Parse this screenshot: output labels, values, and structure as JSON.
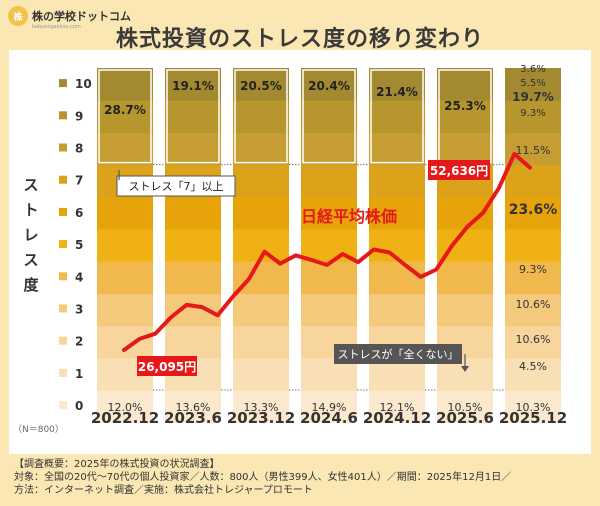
{
  "brand": {
    "logo_text": "株の学校",
    "name": "株の学校ドットコム",
    "sub": "kabunogakkou.com"
  },
  "title": "株式投資のストレス度の移り変わり",
  "footer": {
    "line1": "【調査概要：2025年の株式投資の状況調査】",
    "line2": "対象：全国の20代〜70代の個人投資家／人数：800人（男性399人、女性401人）／期間：2025年12月1日／",
    "line3": "方法：インターネット調査／実施：株式会社トレジャープロモート"
  },
  "colors": {
    "levels": [
      "#fbe8cd",
      "#f8dfb4",
      "#f7d59c",
      "#f5c97b",
      "#f1b94d",
      "#f0b114",
      "#e6a40a",
      "#dca219",
      "#c59d33",
      "#b7962e",
      "#a38a30"
    ],
    "nikkei_line": "#e51919",
    "callout_red": "#e51919"
  },
  "chart_data": {
    "type": "bar",
    "stacked": true,
    "ylabel": "ストレス度",
    "n_label": "（N＝800）",
    "levels": [
      "0",
      "1",
      "2",
      "3",
      "4",
      "5",
      "6",
      "7",
      "8",
      "9",
      "10"
    ],
    "categories": [
      "2022.12",
      "2023.6",
      "2023.12",
      "2024.6",
      "2024.12",
      "2025.6",
      "2025.12"
    ],
    "series_level0_values": [
      12.0,
      13.6,
      13.3,
      14.9,
      12.1,
      10.5,
      10.3
    ],
    "series_level0_labels": [
      "12.0%",
      "13.6%",
      "13.3%",
      "14.9%",
      "12.1%",
      "10.5%",
      "10.3%"
    ],
    "series_level7plus_values": [
      28.7,
      19.1,
      20.5,
      20.4,
      21.4,
      25.3,
      null
    ],
    "series_level7plus_labels": [
      "28.7%",
      "19.1%",
      "20.5%",
      "20.4%",
      "21.4%",
      "25.3%",
      ""
    ],
    "last_bar_labels": {
      "level1": "4.5%",
      "level2": "10.6%",
      "level3": "10.6%",
      "level4": "9.3%",
      "level5": "23.6%",
      "level7": "11.5%",
      "level8": "9.3%",
      "level9": "19.7%",
      "level10": "5.5%",
      "level10b": "3.6%"
    },
    "nikkei": {
      "label": "日経平均株価",
      "start_label": "26,095円",
      "end_label": "52,636円",
      "values": [
        26095,
        27600,
        28300,
        30500,
        32200,
        31900,
        30800,
        33400,
        35700,
        39400,
        37800,
        38900,
        38300,
        37600,
        39100,
        38000,
        39700,
        39300,
        37600,
        36000,
        37000,
        40200,
        42800,
        44700,
        48000,
        52636,
        50800
      ]
    },
    "annotations": {
      "high": "ストレス「7」以上",
      "low": "ストレスが「全くない」"
    }
  }
}
